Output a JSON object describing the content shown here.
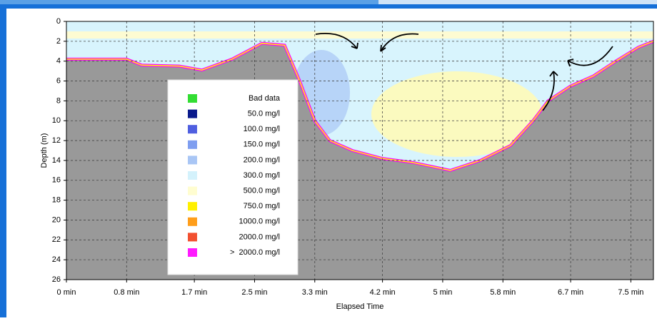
{
  "chart_data": {
    "type": "area",
    "xlabel": "Elapsed Time",
    "ylabel": "Depth (m)",
    "y_inverted": true,
    "grid": true,
    "xlim": [
      0,
      7.8
    ],
    "xticks": [
      {
        "value": 0,
        "label": "0 min"
      },
      {
        "value": 0.8,
        "label": "0.8 min"
      },
      {
        "value": 1.7,
        "label": "1.7 min"
      },
      {
        "value": 2.5,
        "label": "2.5 min"
      },
      {
        "value": 3.3,
        "label": "3.3 min"
      },
      {
        "value": 4.2,
        "label": "4.2 min"
      },
      {
        "value": 5,
        "label": "5 min"
      },
      {
        "value": 5.8,
        "label": "5.8 min"
      },
      {
        "value": 6.7,
        "label": "6.7 min"
      },
      {
        "value": 7.5,
        "label": "7.5 min"
      }
    ],
    "ylim": [
      0,
      26
    ],
    "yticks": [
      0,
      2,
      4,
      6,
      8,
      10,
      12,
      14,
      16,
      18,
      20,
      22,
      24,
      26
    ],
    "x": [
      0,
      0.8,
      1.0,
      1.5,
      1.8,
      2.2,
      2.6,
      2.9,
      3.1,
      3.3,
      3.5,
      3.8,
      4.2,
      4.6,
      5.1,
      5.5,
      5.9,
      6.2,
      6.4,
      6.7,
      7.0,
      7.3,
      7.6,
      7.8
    ],
    "series": [
      {
        "color": "#ff00ff",
        "values": [
          3.8,
          3.8,
          4.4,
          4.5,
          4.9,
          3.8,
          2.2,
          2.4,
          6,
          10,
          12,
          13,
          13.8,
          14.2,
          15,
          14,
          12.5,
          10,
          8,
          6.5,
          5.5,
          4,
          2.6,
          2.0
        ]
      }
    ],
    "legend": [
      {
        "label": "Bad data",
        "color": "#33dd33"
      },
      {
        "label": "50.0 mg/l",
        "color": "#0a1a8c"
      },
      {
        "label": "100.0 mg/l",
        "color": "#4f5fe0"
      },
      {
        "label": "150.0 mg/l",
        "color": "#7f9ef0"
      },
      {
        "label": "200.0 mg/l",
        "color": "#a9c6f5"
      },
      {
        "label": "300.0 mg/l",
        "color": "#d4f2fc"
      },
      {
        "label": "500.0 mg/l",
        "color": "#fffdd0"
      },
      {
        "label": "750.0 mg/l",
        "color": "#fff000"
      },
      {
        "label": "1000.0 mg/l",
        "color": "#ff9e1a"
      },
      {
        "label": "2000.0 mg/l",
        "color": "#f25030"
      },
      {
        "label": ">  2000.0 mg/l",
        "color": "#ff1aff"
      }
    ]
  }
}
